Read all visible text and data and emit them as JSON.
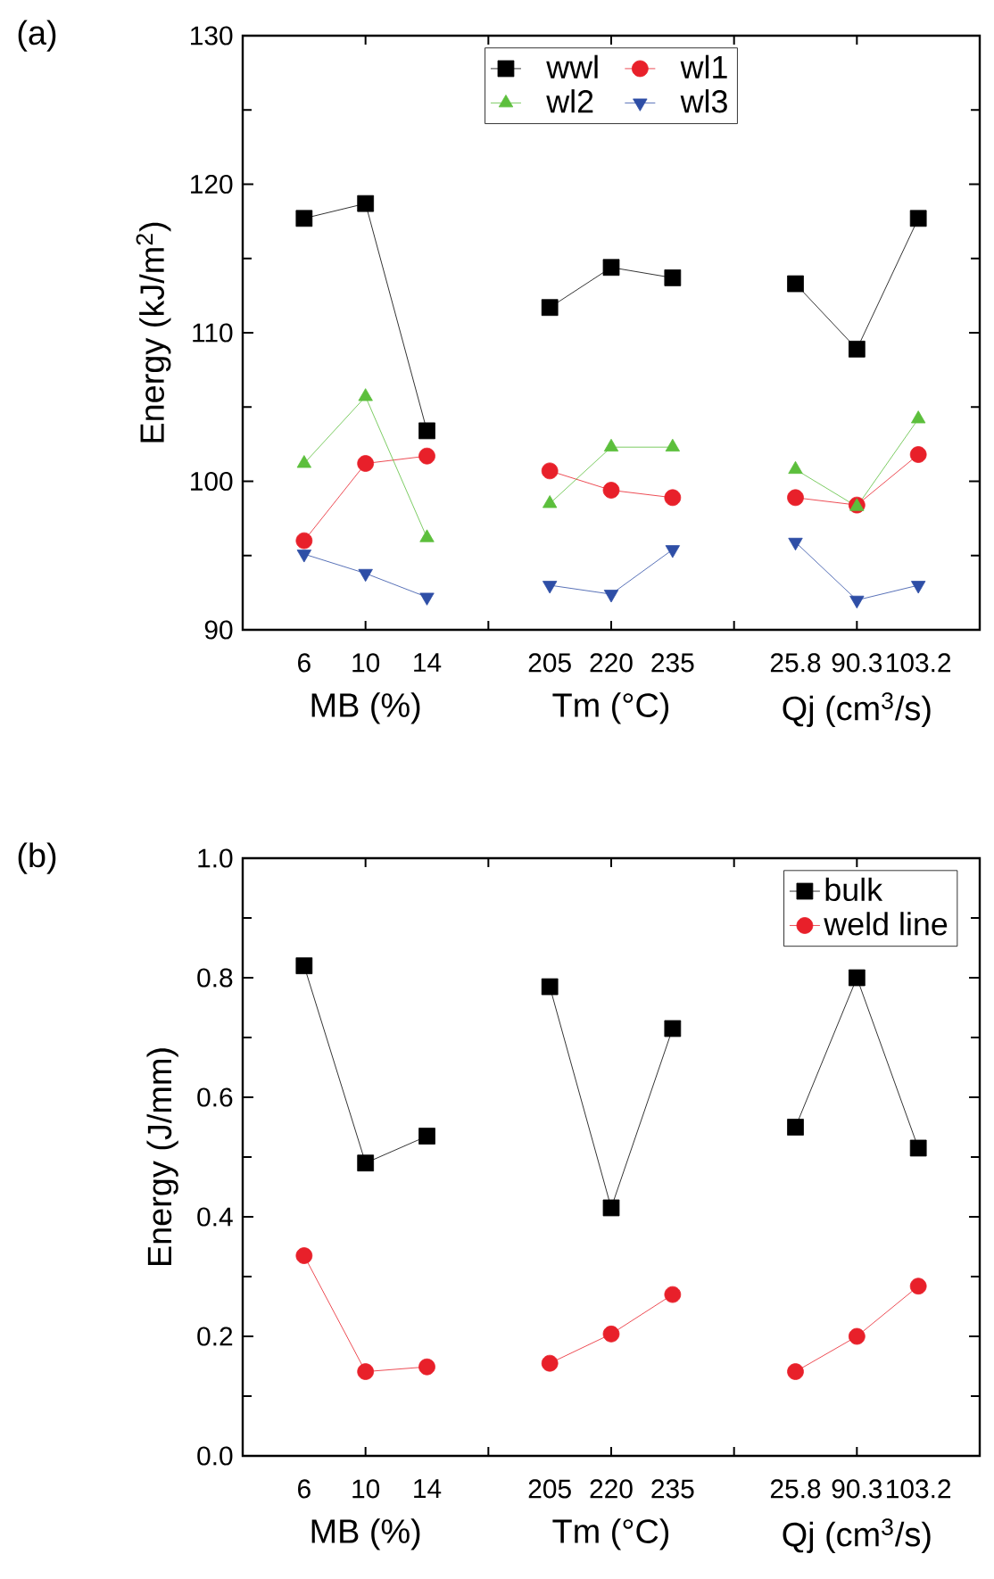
{
  "chart_data": [
    {
      "type": "line",
      "title": "(a)",
      "ylabel": "Energy (kJ/m$^{2}$)",
      "categories": [
        "6",
        "10",
        "14",
        null,
        "205",
        "220",
        "235",
        null,
        "25.8",
        "90.3",
        "103.2"
      ],
      "series": [
        {
          "name": "wwl",
          "color": "#000000",
          "marker": "square",
          "values": [
            117.7,
            118.7,
            103.4,
            null,
            111.7,
            114.4,
            113.7,
            null,
            113.3,
            108.9,
            117.7
          ]
        },
        {
          "name": "wl1",
          "color": "#e8202a",
          "marker": "circle",
          "values": [
            96.0,
            101.2,
            101.7,
            null,
            100.7,
            99.4,
            98.9,
            null,
            98.9,
            98.4,
            101.8
          ]
        },
        {
          "name": "wl2",
          "color": "#5cbf3c",
          "marker": "triangle",
          "values": [
            101.2,
            105.7,
            96.2,
            null,
            98.5,
            102.3,
            102.3,
            null,
            100.8,
            98.3,
            104.2
          ]
        },
        {
          "name": "wl3",
          "color": "#2e4ea6",
          "marker": "triangle-down",
          "values": [
            95.1,
            93.8,
            92.2,
            null,
            93.0,
            92.4,
            95.4,
            null,
            95.9,
            92.0,
            93.0
          ]
        }
      ],
      "ylim": [
        90,
        130
      ],
      "yticks": [
        90,
        100,
        110,
        120,
        130
      ],
      "legend": "top",
      "grid": false,
      "annotations": [
        "MB (%)",
        "Tm (°C)",
        "Qj (cm$^{3}$/s)"
      ]
    },
    {
      "type": "line",
      "title": "(b)",
      "ylabel": "Energy (J/mm)",
      "categories": [
        "6",
        "10",
        "14",
        null,
        "205",
        "220",
        "235",
        null,
        "25.8",
        "90.3",
        "103.2"
      ],
      "series": [
        {
          "name": "bulk",
          "color": "#000000",
          "marker": "square",
          "values": [
            0.82,
            0.49,
            0.535,
            null,
            0.785,
            0.415,
            0.715,
            null,
            0.55,
            0.8,
            0.515
          ]
        },
        {
          "name": "weld line",
          "color": "#e8202a",
          "marker": "circle",
          "values": [
            0.335,
            0.141,
            0.149,
            null,
            0.155,
            0.204,
            0.27,
            null,
            0.141,
            0.2,
            0.284
          ]
        }
      ],
      "ylim": [
        0,
        1
      ],
      "yticks": [
        {
          "value": 0,
          "label": "0.0"
        },
        {
          "value": 0.2,
          "label": "0.2"
        },
        {
          "value": 0.4,
          "label": "0.4"
        },
        {
          "value": 0.6,
          "label": "0.6"
        },
        {
          "value": 0.8,
          "label": "0.8"
        },
        {
          "value": 1,
          "label": "1.0"
        }
      ],
      "legend": "top right",
      "grid": false,
      "annotations": [
        "MB (%)",
        "Tm (°C)",
        "Qj (cm$^{3}$/s)"
      ]
    }
  ]
}
